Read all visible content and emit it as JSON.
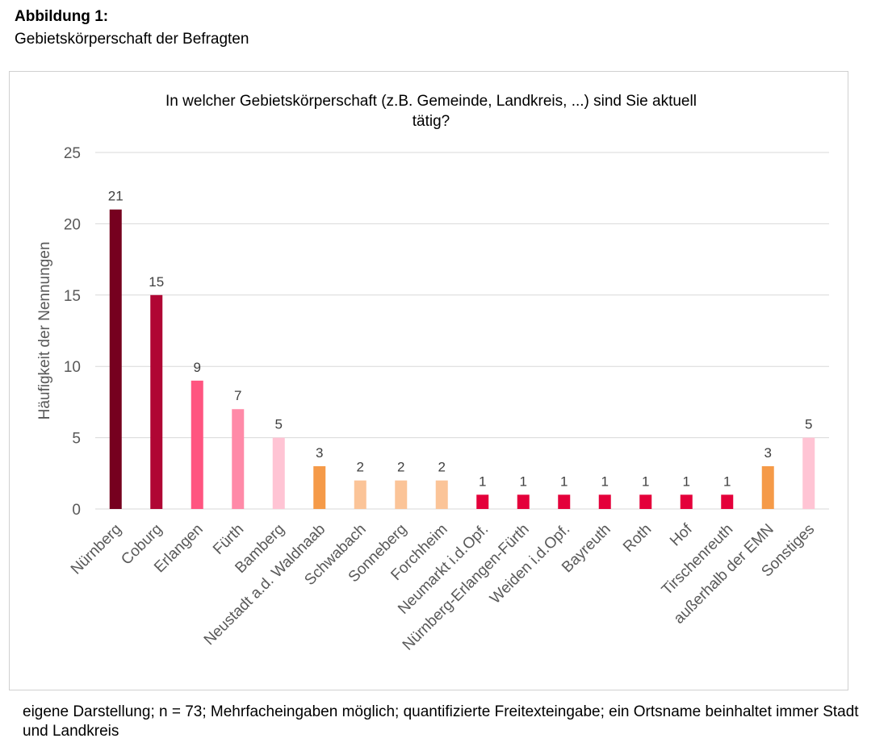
{
  "figure": {
    "title": "Abbildung 1:",
    "subtitle": "Gebietskörperschaft der Befragten",
    "caption": "eigene Darstellung; n = 73; Mehrfacheingaben möglich; quantifizierte Freitexteingabe; ein Ortsname beinhaltet immer Stadt und Landkreis"
  },
  "chart_data": {
    "type": "bar",
    "title_lines": [
      "In welcher Gebietskörperschaft (z.B. Gemeinde, Landkreis, ...) sind Sie aktuell",
      "tätig?"
    ],
    "xlabel": "",
    "ylabel": "Häufigkeit der Nennungen",
    "ylim": [
      0,
      25
    ],
    "yticks": [
      0,
      5,
      10,
      15,
      20,
      25
    ],
    "grid": true,
    "legend": "none",
    "categories": [
      "Nürnberg",
      "Coburg",
      "Erlangen",
      "Fürth",
      "Bamberg",
      "Neustadt a.d. Waldnaab",
      "Schwabach",
      "Sonneberg",
      "Forchheim",
      "Neumarkt i.d.Opf.",
      "Nürnberg-Erlangen-Fürth",
      "Weiden i.d.Opf.",
      "Bayreuth",
      "Roth",
      "Hof",
      "Tirschenreuth",
      "außerhalb der EMN",
      "Sonstiges"
    ],
    "values": [
      21,
      15,
      9,
      7,
      5,
      3,
      2,
      2,
      2,
      1,
      1,
      1,
      1,
      1,
      1,
      1,
      3,
      5
    ],
    "colors": [
      "#76001f",
      "#b00634",
      "#ff5580",
      "#ff8aa8",
      "#ffc4d4",
      "#f59a48",
      "#fbc498",
      "#fbc498",
      "#fbc498",
      "#e4003a",
      "#e4003a",
      "#e4003a",
      "#e4003a",
      "#e4003a",
      "#e4003a",
      "#e4003a",
      "#f59a48",
      "#ffc4d4"
    ]
  },
  "style": {
    "gridline_color": "#d9d9d9",
    "axis_text_color": "#595959",
    "title_color": "#000000"
  }
}
